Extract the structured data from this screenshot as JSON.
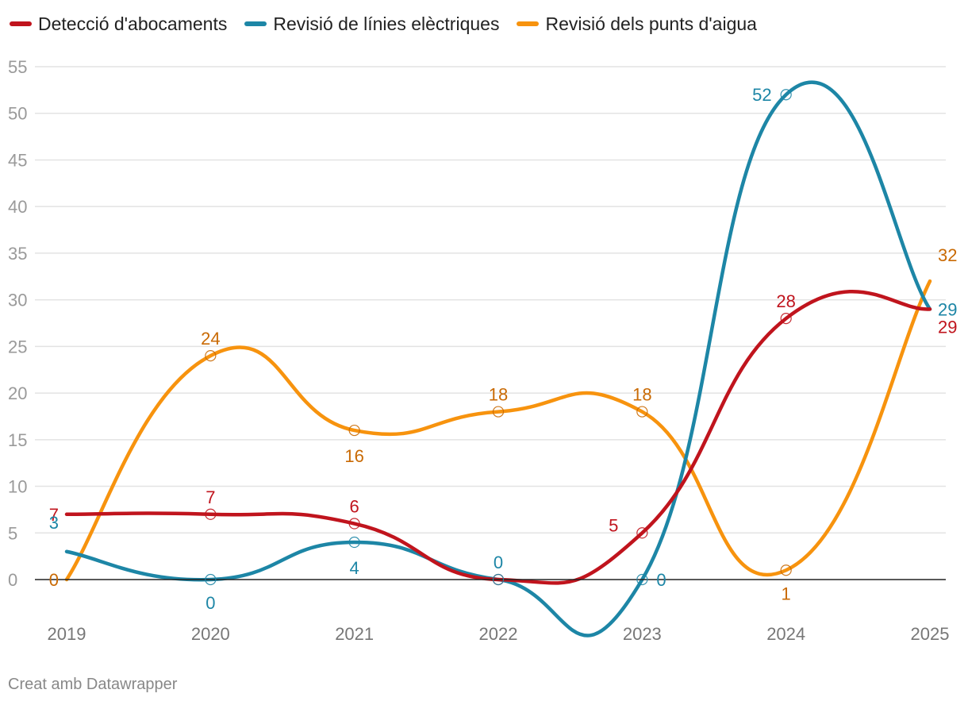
{
  "chart_data": {
    "type": "line",
    "categories": [
      "2019",
      "2020",
      "2021",
      "2022",
      "2023",
      "2024",
      "2025"
    ],
    "series": [
      {
        "name": "Detecció d'abocaments",
        "color": "#c0141d",
        "label_color": "#c0141d",
        "values": [
          7,
          7,
          6,
          0,
          5,
          28,
          29
        ]
      },
      {
        "name": "Revisió de línies elèctriques",
        "color": "#1d86a6",
        "label_color": "#1d86a6",
        "values": [
          3,
          0,
          4,
          0,
          0,
          52,
          29
        ]
      },
      {
        "name": "Revisió dels punts d'aigua",
        "color": "#f7930e",
        "label_color": "#c96a04",
        "values": [
          0,
          24,
          16,
          18,
          18,
          1,
          32
        ]
      }
    ],
    "yticks": [
      "0",
      "5",
      "10",
      "15",
      "20",
      "25",
      "30",
      "35",
      "40",
      "45",
      "50",
      "55"
    ],
    "ylim": [
      0,
      55
    ],
    "xlabel": "",
    "ylabel": "",
    "legend_position": "top-left",
    "grid": true
  },
  "credit": "Creat amb Datawrapper"
}
